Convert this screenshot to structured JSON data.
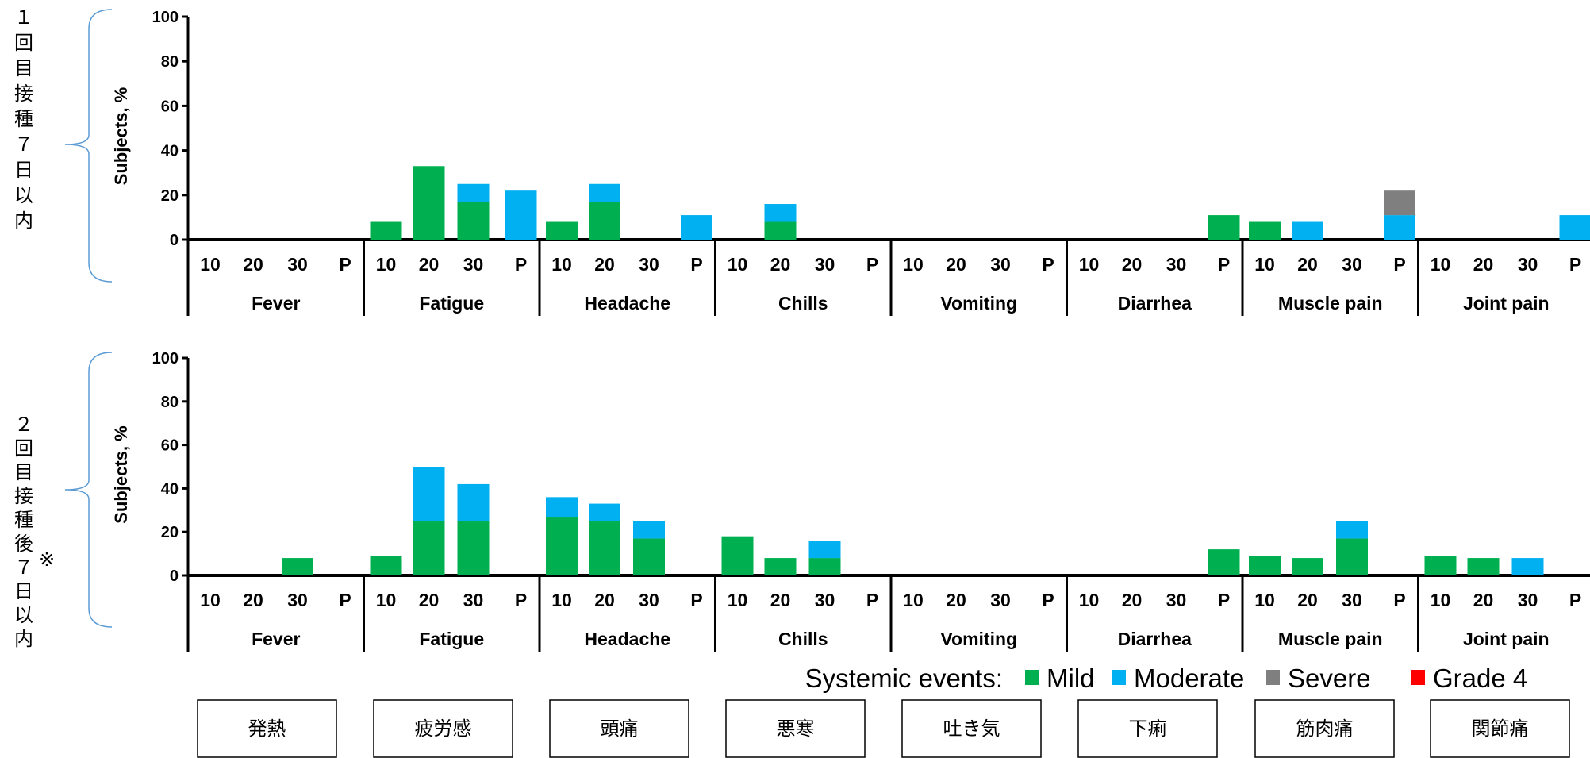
{
  "side_labels": [
    {
      "lines": [
        "１",
        "回",
        "目",
        "接",
        "種",
        "７",
        "日",
        "以",
        "内"
      ]
    },
    {
      "lines": [
        "２",
        "回",
        "目",
        "接",
        "種",
        "後",
        "７",
        "日",
        "以",
        "内"
      ],
      "note_mark": "※"
    }
  ],
  "legend": {
    "title": "Systemic events:",
    "items": [
      {
        "name": "Mild",
        "color": "#00b050"
      },
      {
        "name": "Moderate",
        "color": "#00b0f0"
      },
      {
        "name": "Severe",
        "color": "#7f7f7f"
      },
      {
        "name": "Grade 4",
        "color": "#ff0000"
      }
    ]
  },
  "jp_groups": [
    "発熱",
    "疲労感",
    "頭痛",
    "悪寒",
    "吐き気",
    "下痢",
    "筋肉痛",
    "関節痛"
  ],
  "chart_data": [
    {
      "type": "bar",
      "stacked": true,
      "ylabel": "Subjects, %",
      "ylim": [
        0,
        100
      ],
      "yticks": [
        0,
        20,
        40,
        60,
        80,
        100
      ],
      "groups": [
        "Fever",
        "Fatigue",
        "Headache",
        "Chills",
        "Vomiting",
        "Diarrhea",
        "Muscle pain",
        "Joint pain"
      ],
      "doses": [
        "10",
        "20",
        "30",
        "P"
      ],
      "series": [
        {
          "name": "Mild",
          "values": [
            [
              0,
              0,
              0,
              0
            ],
            [
              8,
              33,
              17,
              0
            ],
            [
              8,
              17,
              0,
              0
            ],
            [
              0,
              8,
              0,
              0
            ],
            [
              0,
              0,
              0,
              0
            ],
            [
              0,
              0,
              0,
              11
            ],
            [
              8,
              0,
              0,
              0
            ],
            [
              0,
              0,
              0,
              0
            ]
          ]
        },
        {
          "name": "Moderate",
          "values": [
            [
              0,
              0,
              0,
              0
            ],
            [
              0,
              0,
              8,
              22
            ],
            [
              0,
              8,
              0,
              11
            ],
            [
              0,
              8,
              0,
              0
            ],
            [
              0,
              0,
              0,
              0
            ],
            [
              0,
              0,
              0,
              0
            ],
            [
              0,
              8,
              0,
              11
            ],
            [
              0,
              0,
              0,
              11
            ]
          ]
        },
        {
          "name": "Severe",
          "values": [
            [
              0,
              0,
              0,
              0
            ],
            [
              0,
              0,
              0,
              0
            ],
            [
              0,
              0,
              0,
              0
            ],
            [
              0,
              0,
              0,
              0
            ],
            [
              0,
              0,
              0,
              0
            ],
            [
              0,
              0,
              0,
              0
            ],
            [
              0,
              0,
              0,
              11
            ],
            [
              0,
              0,
              0,
              0
            ]
          ]
        },
        {
          "name": "Grade 4",
          "values": [
            [
              0,
              0,
              0,
              0
            ],
            [
              0,
              0,
              0,
              0
            ],
            [
              0,
              0,
              0,
              0
            ],
            [
              0,
              0,
              0,
              0
            ],
            [
              0,
              0,
              0,
              0
            ],
            [
              0,
              0,
              0,
              0
            ],
            [
              0,
              0,
              0,
              0
            ],
            [
              0,
              0,
              0,
              0
            ]
          ]
        }
      ]
    },
    {
      "type": "bar",
      "stacked": true,
      "ylabel": "Subjects, %",
      "ylim": [
        0,
        100
      ],
      "yticks": [
        0,
        20,
        40,
        60,
        80,
        100
      ],
      "groups": [
        "Fever",
        "Fatigue",
        "Headache",
        "Chills",
        "Vomiting",
        "Diarrhea",
        "Muscle pain",
        "Joint pain"
      ],
      "doses": [
        "10",
        "20",
        "30",
        "P"
      ],
      "series": [
        {
          "name": "Mild",
          "values": [
            [
              0,
              0,
              8,
              0
            ],
            [
              9,
              25,
              25,
              0
            ],
            [
              27,
              25,
              17,
              0
            ],
            [
              18,
              8,
              8,
              0
            ],
            [
              0,
              0,
              0,
              0
            ],
            [
              0,
              0,
              0,
              12
            ],
            [
              9,
              8,
              17,
              0
            ],
            [
              9,
              8,
              0,
              0
            ]
          ]
        },
        {
          "name": "Moderate",
          "values": [
            [
              0,
              0,
              0,
              0
            ],
            [
              0,
              25,
              17,
              0
            ],
            [
              9,
              8,
              8,
              0
            ],
            [
              0,
              0,
              8,
              0
            ],
            [
              0,
              0,
              0,
              0
            ],
            [
              0,
              0,
              0,
              0
            ],
            [
              0,
              0,
              8,
              0
            ],
            [
              0,
              0,
              8,
              0
            ]
          ]
        },
        {
          "name": "Severe",
          "values": [
            [
              0,
              0,
              0,
              0
            ],
            [
              0,
              0,
              0,
              0
            ],
            [
              0,
              0,
              0,
              0
            ],
            [
              0,
              0,
              0,
              0
            ],
            [
              0,
              0,
              0,
              0
            ],
            [
              0,
              0,
              0,
              0
            ],
            [
              0,
              0,
              0,
              0
            ],
            [
              0,
              0,
              0,
              0
            ]
          ]
        },
        {
          "name": "Grade 4",
          "values": [
            [
              0,
              0,
              0,
              0
            ],
            [
              0,
              0,
              0,
              0
            ],
            [
              0,
              0,
              0,
              0
            ],
            [
              0,
              0,
              0,
              0
            ],
            [
              0,
              0,
              0,
              0
            ],
            [
              0,
              0,
              0,
              0
            ],
            [
              0,
              0,
              0,
              0
            ],
            [
              0,
              0,
              0,
              0
            ]
          ]
        }
      ]
    }
  ]
}
